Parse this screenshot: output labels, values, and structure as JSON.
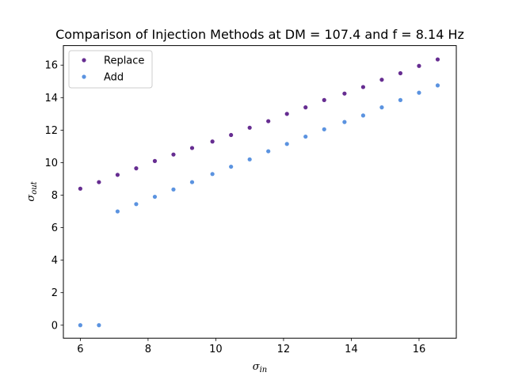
{
  "chart_data": {
    "type": "scatter",
    "title": "Comparison of Injection Methods at DM = 107.4 and f = 8.14 Hz",
    "xlabel": {
      "base": "σ",
      "sub": "in"
    },
    "ylabel": {
      "base": "σ",
      "sub": "out"
    },
    "xlim": [
      5.5,
      17.1
    ],
    "ylim": [
      -0.8,
      17.2
    ],
    "xticks": [
      6,
      8,
      10,
      12,
      14,
      16
    ],
    "yticks": [
      0,
      2,
      4,
      6,
      8,
      10,
      12,
      14,
      16
    ],
    "legend": "upper-left",
    "grid": false,
    "series": [
      {
        "name": "Replace",
        "color": "#662d91",
        "points": [
          [
            6.0,
            8.4
          ],
          [
            6.55,
            8.8
          ],
          [
            7.1,
            9.25
          ],
          [
            7.65,
            9.65
          ],
          [
            8.2,
            10.1
          ],
          [
            8.75,
            10.5
          ],
          [
            9.3,
            10.9
          ],
          [
            9.9,
            11.3
          ],
          [
            10.45,
            11.7
          ],
          [
            11.0,
            12.15
          ],
          [
            11.55,
            12.55
          ],
          [
            12.1,
            13.0
          ],
          [
            12.65,
            13.4
          ],
          [
            13.2,
            13.85
          ],
          [
            13.8,
            14.25
          ],
          [
            14.35,
            14.65
          ],
          [
            14.9,
            15.1
          ],
          [
            15.45,
            15.5
          ],
          [
            16.0,
            15.95
          ],
          [
            16.55,
            16.35
          ]
        ]
      },
      {
        "name": "Add",
        "color": "#5b93e0",
        "points": [
          [
            6.0,
            0.0
          ],
          [
            6.55,
            0.0
          ],
          [
            7.1,
            7.0
          ],
          [
            7.65,
            7.45
          ],
          [
            8.2,
            7.9
          ],
          [
            8.75,
            8.35
          ],
          [
            9.3,
            8.8
          ],
          [
            9.9,
            9.3
          ],
          [
            10.45,
            9.75
          ],
          [
            11.0,
            10.2
          ],
          [
            11.55,
            10.7
          ],
          [
            12.1,
            11.15
          ],
          [
            12.65,
            11.6
          ],
          [
            13.2,
            12.05
          ],
          [
            13.8,
            12.5
          ],
          [
            14.35,
            12.9
          ],
          [
            14.9,
            13.4
          ],
          [
            15.45,
            13.85
          ],
          [
            16.0,
            14.3
          ],
          [
            16.55,
            14.75
          ]
        ]
      }
    ]
  }
}
